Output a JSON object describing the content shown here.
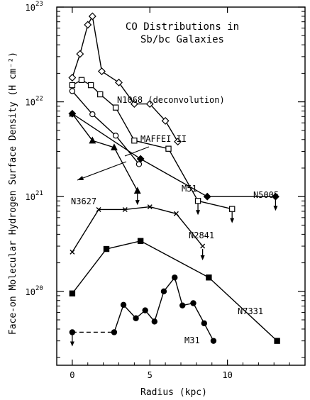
{
  "chart_data": {
    "type": "line",
    "title": [
      "CO Distributions in",
      "Sb/bc Galaxies"
    ],
    "xlabel": "Radius (kpc)",
    "ylabel": "Face-on Molecular Hydrogen Surface Density (H cm⁻²)",
    "xlim": [
      -1,
      15
    ],
    "ylim_log10": [
      19.22,
      23
    ],
    "yscale": "log",
    "x_ticks": [
      {
        "v": 0,
        "label": "0"
      },
      {
        "v": 5,
        "label": "5"
      },
      {
        "v": 10,
        "label": "10"
      }
    ],
    "y_ticks": [
      {
        "exp": 20,
        "label": "10",
        "sup": "20"
      },
      {
        "exp": 21,
        "label": "10",
        "sup": "21"
      },
      {
        "exp": 22,
        "label": "10",
        "sup": "22"
      },
      {
        "exp": 23,
        "label": "10",
        "sup": "23"
      }
    ],
    "series": [
      {
        "name": "N1068 (deconvolution)",
        "marker": "diamond-open",
        "x": [
          0,
          0.5,
          1.0,
          1.3,
          1.9,
          3.0,
          4.0,
          5.0,
          6.0,
          6.8
        ],
        "y": [
          1.8e+22,
          3.2e+22,
          6.5e+22,
          8e+22,
          2.1e+22,
          1.6e+22,
          9.5e+21,
          9.5e+21,
          6.3e+21,
          3.8e+21
        ]
      },
      {
        "name": "MAFFEI II",
        "marker": "square-open",
        "x": [
          0,
          0.6,
          1.2,
          1.8,
          2.8,
          4.0,
          6.2,
          8.1,
          10.3
        ],
        "y": [
          1.5e+22,
          1.7e+22,
          1.5e+22,
          1.2e+22,
          8.7e+21,
          3.9e+21,
          3.2e+21,
          9e+20,
          7.4e+20
        ],
        "upper_limits_x": [
          8.1,
          10.3
        ]
      },
      {
        "name": "",
        "marker": "circle-open",
        "x": [
          0,
          1.3,
          2.8,
          4.3
        ],
        "y": [
          1.3e+22,
          7.4e+21,
          4.4e+21,
          2.2e+21
        ]
      },
      {
        "name": "N3627",
        "marker": "triangle-filled",
        "x": [
          0,
          1.3,
          2.7,
          4.2
        ],
        "y": [
          7.5e+21,
          3.9e+21,
          3.3e+21,
          1.15e+21
        ],
        "upper_limits_x": [
          4.2
        ]
      },
      {
        "name": "N5005",
        "marker": "diamond-filled",
        "x": [
          0,
          4.4,
          8.7,
          13.1
        ],
        "y": [
          7.5e+21,
          2.5e+21,
          1e+21,
          1e+21
        ],
        "upper_limits_x": [
          13.1
        ]
      },
      {
        "name": "N2841",
        "marker": "x",
        "x": [
          0,
          1.7,
          3.4,
          5.0,
          6.7,
          8.4
        ],
        "y": [
          2.6e+20,
          7.3e+20,
          7.3e+20,
          7.8e+20,
          6.6e+20,
          3e+20
        ],
        "upper_limits_x": [
          8.4
        ]
      },
      {
        "name": "N7331",
        "marker": "square-filled",
        "x": [
          0,
          2.2,
          4.4,
          8.8,
          13.2
        ],
        "y": [
          9.5e+19,
          2.8e+20,
          3.4e+20,
          1.4e+20,
          3e+19
        ]
      },
      {
        "name": "M31",
        "marker": "circle-filled",
        "x": [
          0,
          2.7,
          3.3,
          4.1,
          4.7,
          5.3,
          5.9,
          6.6,
          7.1,
          7.8,
          8.5,
          9.1
        ],
        "y": [
          3.7e+19,
          3.7e+19,
          7.2e+19,
          5.2e+19,
          6.3e+19,
          4.8e+19,
          1e+20,
          1.4e+20,
          7.1e+19,
          7.5e+19,
          4.6e+19,
          3e+19
        ],
        "dashed_segments": [
          0
        ],
        "upper_limits_x": [
          0
        ]
      }
    ],
    "annotations": [
      "N1068 (deconvolution)",
      "MAFFEI II",
      "N3627",
      "M51",
      "N5005",
      "N2841",
      "N7331",
      "M31"
    ]
  }
}
